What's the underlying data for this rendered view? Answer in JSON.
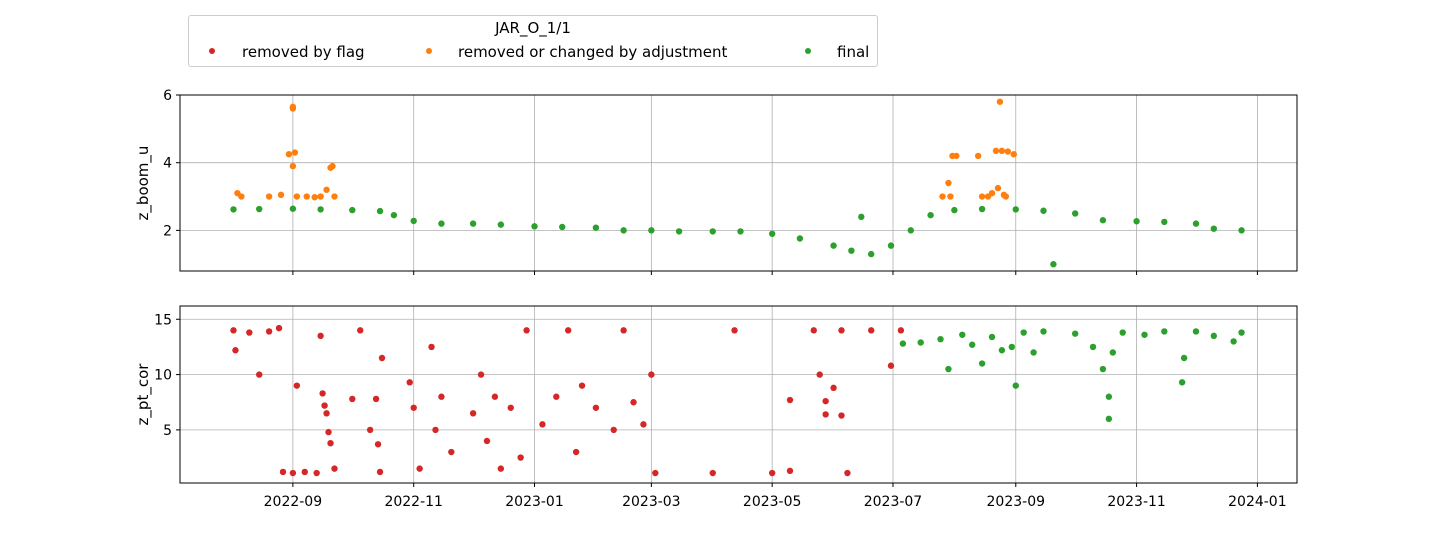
{
  "chart_data": {
    "type": "scatter",
    "title": "JAR_O_1/1",
    "x_tick_labels": [
      "2022-09",
      "2022-11",
      "2023-01",
      "2023-03",
      "2023-05",
      "2023-07",
      "2023-09",
      "2023-11",
      "2024-01"
    ],
    "x_ticks": [
      "2022-09-01",
      "2022-11-01",
      "2023-01-01",
      "2023-03-01",
      "2023-05-01",
      "2023-07-01",
      "2023-09-01",
      "2023-11-01",
      "2024-01-01"
    ],
    "xlim": [
      "2022-07-06",
      "2024-01-21"
    ],
    "legend": {
      "placement": "upper-center, above plots",
      "entries": [
        {
          "label": "removed by flag",
          "color": "#d62728"
        },
        {
          "label": "removed or changed by adjustment",
          "color": "#ff7f0e"
        },
        {
          "label": "final",
          "color": "#2ca02c"
        }
      ]
    },
    "grid": true,
    "panels": [
      {
        "ylabel": "z_boom_u",
        "ylim": [
          0.8,
          6.0
        ],
        "y_ticks": [
          2,
          4,
          6
        ],
        "series": [
          {
            "name": "final",
            "color": "#2ca02c",
            "points": [
              [
                "2022-08-02",
                2.62
              ],
              [
                "2022-08-15",
                2.63
              ],
              [
                "2022-09-01",
                2.64
              ],
              [
                "2022-09-15",
                2.62
              ],
              [
                "2022-10-01",
                2.6
              ],
              [
                "2022-10-15",
                2.57
              ],
              [
                "2022-10-22",
                2.45
              ],
              [
                "2022-11-01",
                2.28
              ],
              [
                "2022-11-15",
                2.2
              ],
              [
                "2022-12-01",
                2.2
              ],
              [
                "2022-12-15",
                2.17
              ],
              [
                "2023-01-01",
                2.12
              ],
              [
                "2023-01-15",
                2.1
              ],
              [
                "2023-02-01",
                2.08
              ],
              [
                "2023-02-15",
                2.0
              ],
              [
                "2023-03-01",
                2.0
              ],
              [
                "2023-03-15",
                1.97
              ],
              [
                "2023-04-01",
                1.97
              ],
              [
                "2023-04-15",
                1.97
              ],
              [
                "2023-05-01",
                1.9
              ],
              [
                "2023-05-15",
                1.76
              ],
              [
                "2023-06-01",
                1.55
              ],
              [
                "2023-06-10",
                1.4
              ],
              [
                "2023-06-20",
                1.3
              ],
              [
                "2023-06-30",
                1.55
              ],
              [
                "2023-07-10",
                2.0
              ],
              [
                "2023-07-20",
                2.45
              ],
              [
                "2023-08-01",
                2.6
              ],
              [
                "2023-08-15",
                2.63
              ],
              [
                "2023-09-01",
                2.62
              ],
              [
                "2023-09-15",
                2.58
              ],
              [
                "2023-10-01",
                2.5
              ],
              [
                "2023-10-15",
                2.3
              ],
              [
                "2023-11-01",
                2.27
              ],
              [
                "2023-11-15",
                2.25
              ],
              [
                "2023-12-01",
                2.2
              ],
              [
                "2023-12-10",
                2.05
              ],
              [
                "2023-12-24",
                2.0
              ],
              [
                "2023-06-15",
                2.4
              ],
              [
                "2023-09-20",
                1.0
              ]
            ]
          },
          {
            "name": "removed or changed by adjustment",
            "color": "#ff7f0e",
            "points": [
              [
                "2022-08-04",
                3.1
              ],
              [
                "2022-08-06",
                3.0
              ],
              [
                "2022-08-20",
                3.0
              ],
              [
                "2022-08-26",
                3.05
              ],
              [
                "2022-08-30",
                4.25
              ],
              [
                "2022-09-01",
                5.65
              ],
              [
                "2022-09-01",
                5.6
              ],
              [
                "2022-09-02",
                4.3
              ],
              [
                "2022-09-01",
                3.9
              ],
              [
                "2022-09-03",
                3.0
              ],
              [
                "2022-09-08",
                3.0
              ],
              [
                "2022-09-12",
                2.98
              ],
              [
                "2022-09-15",
                3.0
              ],
              [
                "2022-09-18",
                3.2
              ],
              [
                "2022-09-20",
                3.85
              ],
              [
                "2022-09-21",
                3.9
              ],
              [
                "2022-09-22",
                3.0
              ],
              [
                "2023-07-26",
                3.0
              ],
              [
                "2023-07-29",
                3.4
              ],
              [
                "2023-07-30",
                3.0
              ],
              [
                "2023-07-31",
                4.2
              ],
              [
                "2023-08-02",
                4.2
              ],
              [
                "2023-08-13",
                4.2
              ],
              [
                "2023-08-15",
                3.0
              ],
              [
                "2023-08-18",
                3.0
              ],
              [
                "2023-08-20",
                3.1
              ],
              [
                "2023-08-22",
                4.35
              ],
              [
                "2023-08-24",
                5.8
              ],
              [
                "2023-08-25",
                4.35
              ],
              [
                "2023-08-27",
                3.0
              ],
              [
                "2023-08-28",
                4.33
              ],
              [
                "2023-08-31",
                4.25
              ],
              [
                "2023-08-23",
                3.25
              ],
              [
                "2023-08-26",
                3.05
              ]
            ]
          }
        ]
      },
      {
        "ylabel": "z_pt_cor",
        "ylim": [
          0.2,
          16.2
        ],
        "y_ticks": [
          5,
          10,
          15
        ],
        "series": [
          {
            "name": "removed by flag",
            "color": "#d62728",
            "points": [
              [
                "2022-08-02",
                14.0
              ],
              [
                "2022-08-03",
                12.2
              ],
              [
                "2022-08-10",
                13.8
              ],
              [
                "2022-08-15",
                10.0
              ],
              [
                "2022-08-20",
                13.9
              ],
              [
                "2022-08-25",
                14.2
              ],
              [
                "2022-08-27",
                1.2
              ],
              [
                "2022-09-01",
                1.1
              ],
              [
                "2022-09-03",
                9.0
              ],
              [
                "2022-09-07",
                1.2
              ],
              [
                "2022-09-13",
                1.1
              ],
              [
                "2022-09-15",
                13.5
              ],
              [
                "2022-09-16",
                8.3
              ],
              [
                "2022-09-17",
                7.2
              ],
              [
                "2022-09-18",
                6.5
              ],
              [
                "2022-09-19",
                4.8
              ],
              [
                "2022-09-20",
                3.8
              ],
              [
                "2022-09-22",
                1.5
              ],
              [
                "2022-10-01",
                7.8
              ],
              [
                "2022-10-05",
                14.0
              ],
              [
                "2022-10-10",
                5.0
              ],
              [
                "2022-10-13",
                7.8
              ],
              [
                "2022-10-14",
                3.7
              ],
              [
                "2022-10-15",
                1.2
              ],
              [
                "2022-10-16",
                11.5
              ],
              [
                "2022-10-30",
                9.3
              ],
              [
                "2022-11-01",
                7.0
              ],
              [
                "2022-11-04",
                1.5
              ],
              [
                "2022-11-10",
                12.5
              ],
              [
                "2022-11-12",
                5.0
              ],
              [
                "2022-11-15",
                8.0
              ],
              [
                "2022-11-20",
                3.0
              ],
              [
                "2022-12-01",
                6.5
              ],
              [
                "2022-12-05",
                10.0
              ],
              [
                "2022-12-08",
                4.0
              ],
              [
                "2022-12-12",
                8.0
              ],
              [
                "2022-12-15",
                1.5
              ],
              [
                "2022-12-20",
                7.0
              ],
              [
                "2022-12-25",
                2.5
              ],
              [
                "2022-12-28",
                14.0
              ],
              [
                "2023-01-05",
                5.5
              ],
              [
                "2023-01-12",
                8.0
              ],
              [
                "2023-01-18",
                14.0
              ],
              [
                "2023-01-22",
                3.0
              ],
              [
                "2023-01-25",
                9.0
              ],
              [
                "2023-02-01",
                7.0
              ],
              [
                "2023-02-10",
                5.0
              ],
              [
                "2023-02-15",
                14.0
              ],
              [
                "2023-02-20",
                7.5
              ],
              [
                "2023-02-25",
                5.5
              ],
              [
                "2023-03-01",
                10.0
              ],
              [
                "2023-03-03",
                1.1
              ],
              [
                "2023-04-01",
                1.1
              ],
              [
                "2023-04-12",
                14.0
              ],
              [
                "2023-05-01",
                1.1
              ],
              [
                "2023-05-10",
                1.3
              ],
              [
                "2023-05-10",
                7.7
              ],
              [
                "2023-05-22",
                14.0
              ],
              [
                "2023-05-25",
                10.0
              ],
              [
                "2023-05-28",
                7.6
              ],
              [
                "2023-05-28",
                6.4
              ],
              [
                "2023-06-01",
                8.8
              ],
              [
                "2023-06-05",
                14.0
              ],
              [
                "2023-06-05",
                6.3
              ],
              [
                "2023-06-08",
                1.1
              ],
              [
                "2023-06-20",
                14.0
              ],
              [
                "2023-06-30",
                10.8
              ],
              [
                "2023-07-05",
                14.0
              ]
            ]
          },
          {
            "name": "final",
            "color": "#2ca02c",
            "points": [
              [
                "2023-07-06",
                12.8
              ],
              [
                "2023-07-15",
                12.9
              ],
              [
                "2023-07-25",
                13.2
              ],
              [
                "2023-07-29",
                10.5
              ],
              [
                "2023-08-05",
                13.6
              ],
              [
                "2023-08-10",
                12.7
              ],
              [
                "2023-08-15",
                11.0
              ],
              [
                "2023-08-20",
                13.4
              ],
              [
                "2023-08-25",
                12.2
              ],
              [
                "2023-08-30",
                12.5
              ],
              [
                "2023-09-01",
                9.0
              ],
              [
                "2023-09-05",
                13.8
              ],
              [
                "2023-09-10",
                12.0
              ],
              [
                "2023-09-15",
                13.9
              ],
              [
                "2023-10-01",
                13.7
              ],
              [
                "2023-10-10",
                12.5
              ],
              [
                "2023-10-15",
                10.5
              ],
              [
                "2023-10-18",
                8.0
              ],
              [
                "2023-10-18",
                6.0
              ],
              [
                "2023-10-20",
                12.0
              ],
              [
                "2023-10-25",
                13.8
              ],
              [
                "2023-11-05",
                13.6
              ],
              [
                "2023-11-15",
                13.9
              ],
              [
                "2023-11-24",
                9.3
              ],
              [
                "2023-11-25",
                11.5
              ],
              [
                "2023-12-01",
                13.9
              ],
              [
                "2023-12-10",
                13.5
              ],
              [
                "2023-12-20",
                13.0
              ],
              [
                "2023-12-24",
                13.8
              ]
            ]
          }
        ]
      }
    ]
  }
}
